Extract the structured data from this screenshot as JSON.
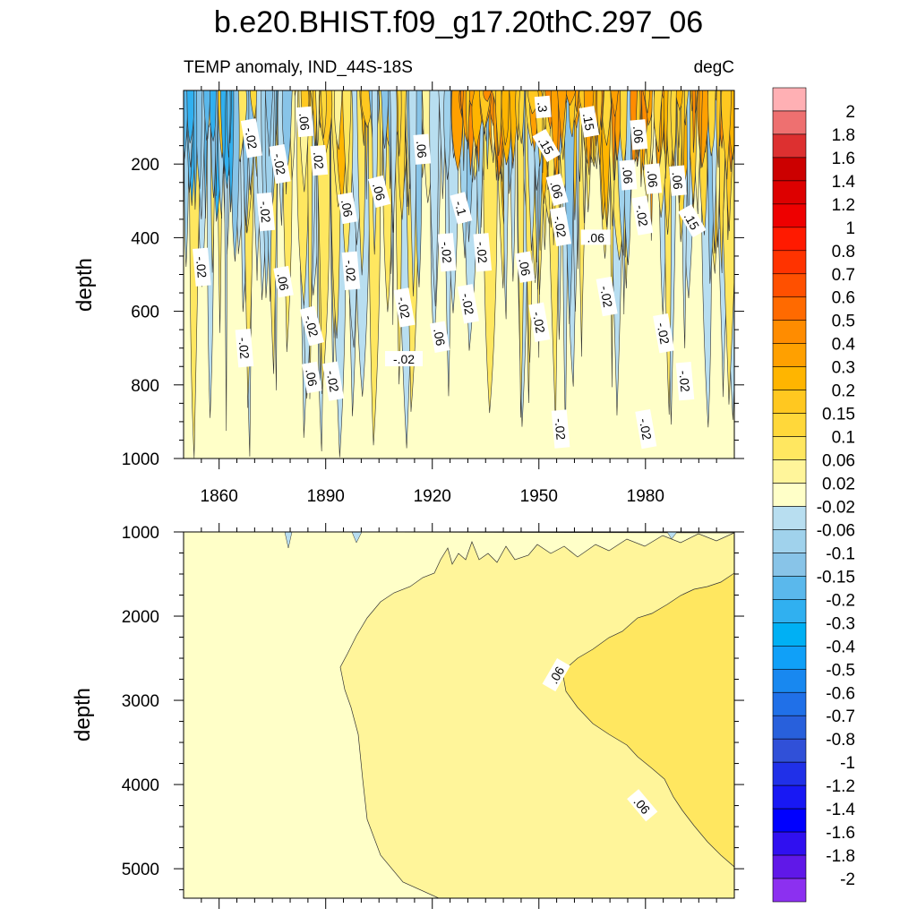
{
  "title": "b.e20.BHIST.f09_g17.20thC.297_06",
  "chart_data": [
    {
      "type": "heatmap",
      "panel": "upper",
      "left_label": "TEMP anomaly, IND_44S-18S",
      "right_label": "degC",
      "xlabel": "",
      "ylabel": "depth",
      "xlim": [
        1850,
        2005
      ],
      "ylim": [
        1000,
        0
      ],
      "x_ticks": [
        1860,
        1890,
        1920,
        1950,
        1980
      ],
      "x_tick_labels": [
        "1860",
        "1890",
        "1920",
        "1950",
        "1980"
      ],
      "y_ticks": [
        200,
        400,
        600,
        800,
        1000
      ],
      "y_tick_labels": [
        "200",
        "400",
        "600",
        "800",
        "1000"
      ],
      "contour_labels": [
        {
          "text": "-.02",
          "x": 1869,
          "y": 130,
          "rot": 80
        },
        {
          "text": ".06",
          "x": 1884,
          "y": 85,
          "rot": 85
        },
        {
          "text": "-.02",
          "x": 1877,
          "y": 200,
          "rot": 80
        },
        {
          "text": ".02",
          "x": 1888,
          "y": 190,
          "rot": 85
        },
        {
          "text": "-.02",
          "x": 1873,
          "y": 330,
          "rot": 85
        },
        {
          "text": ".06",
          "x": 1896,
          "y": 320,
          "rot": 80
        },
        {
          "text": ".06",
          "x": 1905,
          "y": 275,
          "rot": 75
        },
        {
          "text": ".06",
          "x": 1917,
          "y": 160,
          "rot": 85
        },
        {
          "text": "-.1",
          "x": 1928,
          "y": 320,
          "rot": 75
        },
        {
          "text": "-.02",
          "x": 1855,
          "y": 480,
          "rot": 85
        },
        {
          "text": ".06",
          "x": 1878,
          "y": 520,
          "rot": 80
        },
        {
          "text": "-.02",
          "x": 1897,
          "y": 490,
          "rot": 85
        },
        {
          "text": "-.02",
          "x": 1924,
          "y": 440,
          "rot": 85
        },
        {
          "text": "-.02",
          "x": 1934,
          "y": 440,
          "rot": 85
        },
        {
          "text": "-.02",
          "x": 1912,
          "y": 590,
          "rot": 80
        },
        {
          "text": "-.02",
          "x": 1912,
          "y": 730,
          "rot": 0
        },
        {
          "text": ".06",
          "x": 1922,
          "y": 670,
          "rot": 80
        },
        {
          "text": "-.02",
          "x": 1930,
          "y": 580,
          "rot": 80
        },
        {
          "text": "-.02",
          "x": 1886,
          "y": 640,
          "rot": 75
        },
        {
          "text": ".06",
          "x": 1886,
          "y": 780,
          "rot": 80
        },
        {
          "text": "-.02",
          "x": 1892,
          "y": 790,
          "rot": 80
        },
        {
          "text": "-.02",
          "x": 1867,
          "y": 700,
          "rot": 85
        },
        {
          "text": ".3",
          "x": 1951,
          "y": 45,
          "rot": 85
        },
        {
          "text": ".15",
          "x": 1964,
          "y": 85,
          "rot": 80
        },
        {
          "text": ".15",
          "x": 1952,
          "y": 150,
          "rot": 60
        },
        {
          "text": ".06",
          "x": 1955,
          "y": 270,
          "rot": 75
        },
        {
          "text": "-.02",
          "x": 1956,
          "y": 370,
          "rot": 80
        },
        {
          "text": ".06",
          "x": 1966,
          "y": 400,
          "rot": 0
        },
        {
          "text": ".06",
          "x": 1946,
          "y": 480,
          "rot": 80
        },
        {
          "text": "-.02",
          "x": 1950,
          "y": 630,
          "rot": 80
        },
        {
          "text": "-.02",
          "x": 1969,
          "y": 560,
          "rot": 80
        },
        {
          "text": ".06",
          "x": 1978,
          "y": 120,
          "rot": 85
        },
        {
          "text": ".06",
          "x": 1975,
          "y": 230,
          "rot": 85
        },
        {
          "text": ".06",
          "x": 1982,
          "y": 240,
          "rot": 85
        },
        {
          "text": ".06",
          "x": 1989,
          "y": 245,
          "rot": 85
        },
        {
          "text": "-.02",
          "x": 1979,
          "y": 340,
          "rot": 80
        },
        {
          "text": ".15",
          "x": 1993,
          "y": 355,
          "rot": 60
        },
        {
          "text": "-.02",
          "x": 1985,
          "y": 660,
          "rot": 80
        },
        {
          "text": "-.02",
          "x": 1991,
          "y": 790,
          "rot": 85
        },
        {
          "text": "-.02",
          "x": 1980,
          "y": 920,
          "rot": 80
        },
        {
          "text": "-.02",
          "x": 1956,
          "y": 920,
          "rot": 85
        }
      ]
    },
    {
      "type": "heatmap",
      "panel": "lower",
      "xlabel": "",
      "ylabel": "depth",
      "xlim": [
        1850,
        2005
      ],
      "ylim": [
        5350,
        1000
      ],
      "y_ticks": [
        1000,
        2000,
        3000,
        4000,
        5000
      ],
      "y_tick_labels": [
        "1000",
        "2000",
        "3000",
        "4000",
        "5000"
      ],
      "contour_labels": [
        {
          "text": ".06",
          "x": 1955,
          "y": 2700,
          "rot": -60
        },
        {
          "text": ".06",
          "x": 1979,
          "y": 4250,
          "rot": 50
        }
      ]
    }
  ],
  "colorbar": {
    "labels": [
      "2",
      "1.8",
      "1.6",
      "1.4",
      "1.2",
      "1",
      "0.8",
      "0.7",
      "0.6",
      "0.5",
      "0.4",
      "0.3",
      "0.2",
      "0.15",
      "0.1",
      "0.06",
      "0.02",
      "-0.02",
      "-0.06",
      "-0.1",
      "-0.15",
      "-0.2",
      "-0.3",
      "-0.4",
      "-0.5",
      "-0.6",
      "-0.7",
      "-0.8",
      "-1",
      "-1.2",
      "-1.4",
      "-1.6",
      "-1.8",
      "-2"
    ],
    "colors": [
      "#ffb0b4",
      "#ee7070",
      "#dd3030",
      "#cc0000",
      "#dd0000",
      "#ee0000",
      "#ff1a00",
      "#ff3300",
      "#ff5000",
      "#ff6a00",
      "#ff8c00",
      "#ffa000",
      "#ffb500",
      "#ffc820",
      "#ffd83a",
      "#ffe760",
      "#fff59a",
      "#ffffc8",
      "#b8def0",
      "#a0d2ec",
      "#88c4e8",
      "#5ab8ec",
      "#30b0f0",
      "#00b0f4",
      "#10a0f8",
      "#1888f0",
      "#2070e8",
      "#2860dc",
      "#3050d8",
      "#2030e8",
      "#1818f4",
      "#0000ff",
      "#3010f0",
      "#6018e8",
      "#8c30f0"
    ]
  }
}
